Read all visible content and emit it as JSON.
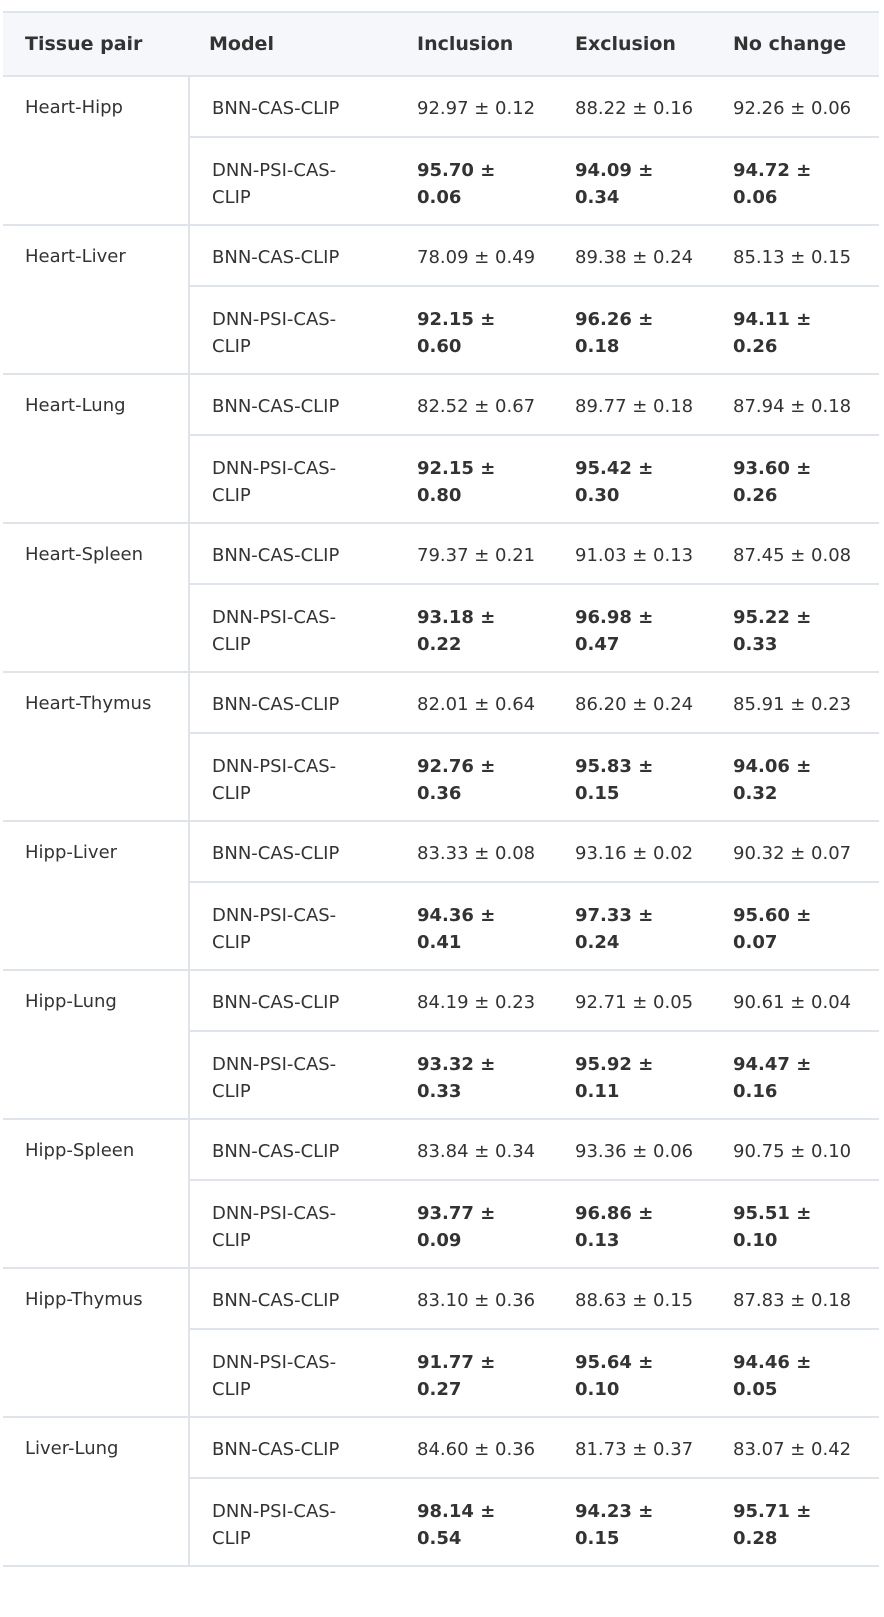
{
  "headers": [
    "Tissue pair",
    "Model",
    "Inclusion",
    "Exclusion",
    "No change"
  ],
  "rows": [
    {
      "pair": "Heart-Hipp",
      "a": {
        "model": "BNN-CAS-CLIP",
        "inc": "92.97 ± 0.12",
        "exc": "88.22 ± 0.16",
        "nc": "92.26 ± 0.06"
      },
      "b": {
        "model": "DNN-PSI-CAS-CLIP",
        "inc": "95.70 ± 0.06",
        "exc": "94.09 ± 0.34",
        "nc": "94.72 ± 0.06"
      }
    },
    {
      "pair": "Heart-Liver",
      "a": {
        "model": "BNN-CAS-CLIP",
        "inc": "78.09 ± 0.49",
        "exc": "89.38 ± 0.24",
        "nc": "85.13 ± 0.15"
      },
      "b": {
        "model": "DNN-PSI-CAS-CLIP",
        "inc": "92.15 ± 0.60",
        "exc": "96.26 ± 0.18",
        "nc": "94.11 ± 0.26"
      }
    },
    {
      "pair": "Heart-Lung",
      "a": {
        "model": "BNN-CAS-CLIP",
        "inc": "82.52 ± 0.67",
        "exc": "89.77 ± 0.18",
        "nc": "87.94 ± 0.18"
      },
      "b": {
        "model": "DNN-PSI-CAS-CLIP",
        "inc": "92.15 ± 0.80",
        "exc": "95.42 ± 0.30",
        "nc": "93.60 ± 0.26"
      }
    },
    {
      "pair": "Heart-Spleen",
      "a": {
        "model": "BNN-CAS-CLIP",
        "inc": "79.37 ± 0.21",
        "exc": "91.03 ± 0.13",
        "nc": "87.45 ± 0.08"
      },
      "b": {
        "model": "DNN-PSI-CAS-CLIP",
        "inc": "93.18 ± 0.22",
        "exc": "96.98 ± 0.47",
        "nc": "95.22 ± 0.33"
      }
    },
    {
      "pair": "Heart-Thymus",
      "a": {
        "model": "BNN-CAS-CLIP",
        "inc": "82.01 ± 0.64",
        "exc": "86.20 ± 0.24",
        "nc": "85.91 ± 0.23"
      },
      "b": {
        "model": "DNN-PSI-CAS-CLIP",
        "inc": "92.76 ± 0.36",
        "exc": "95.83 ± 0.15",
        "nc": "94.06 ± 0.32"
      }
    },
    {
      "pair": "Hipp-Liver",
      "a": {
        "model": "BNN-CAS-CLIP",
        "inc": "83.33 ± 0.08",
        "exc": "93.16 ± 0.02",
        "nc": "90.32 ± 0.07"
      },
      "b": {
        "model": "DNN-PSI-CAS-CLIP",
        "inc": "94.36 ± 0.41",
        "exc": "97.33 ± 0.24",
        "nc": "95.60 ± 0.07"
      }
    },
    {
      "pair": "Hipp-Lung",
      "a": {
        "model": "BNN-CAS-CLIP",
        "inc": "84.19 ± 0.23",
        "exc": "92.71 ± 0.05",
        "nc": "90.61 ± 0.04"
      },
      "b": {
        "model": "DNN-PSI-CAS-CLIP",
        "inc": "93.32 ± 0.33",
        "exc": "95.92 ± 0.11",
        "nc": "94.47 ± 0.16"
      }
    },
    {
      "pair": "Hipp-Spleen",
      "a": {
        "model": "BNN-CAS-CLIP",
        "inc": "83.84 ± 0.34",
        "exc": "93.36 ± 0.06",
        "nc": "90.75 ± 0.10"
      },
      "b": {
        "model": "DNN-PSI-CAS-CLIP",
        "inc": "93.77 ± 0.09",
        "exc": "96.86 ± 0.13",
        "nc": "95.51 ± 0.10"
      }
    },
    {
      "pair": "Hipp-Thymus",
      "a": {
        "model": "BNN-CAS-CLIP",
        "inc": "83.10 ± 0.36",
        "exc": "88.63 ± 0.15",
        "nc": "87.83 ± 0.18"
      },
      "b": {
        "model": "DNN-PSI-CAS-CLIP",
        "inc": "91.77 ± 0.27",
        "exc": "95.64 ± 0.10",
        "nc": "94.46 ± 0.05"
      }
    },
    {
      "pair": "Liver-Lung",
      "a": {
        "model": "BNN-CAS-CLIP",
        "inc": "84.60 ± 0.36",
        "exc": "81.73 ± 0.37",
        "nc": "83.07 ± 0.42"
      },
      "b": {
        "model": "DNN-PSI-CAS-CLIP",
        "inc": "98.14 ± 0.54",
        "exc": "94.23 ± 0.15",
        "nc": "95.71 ± 0.28"
      }
    }
  ]
}
